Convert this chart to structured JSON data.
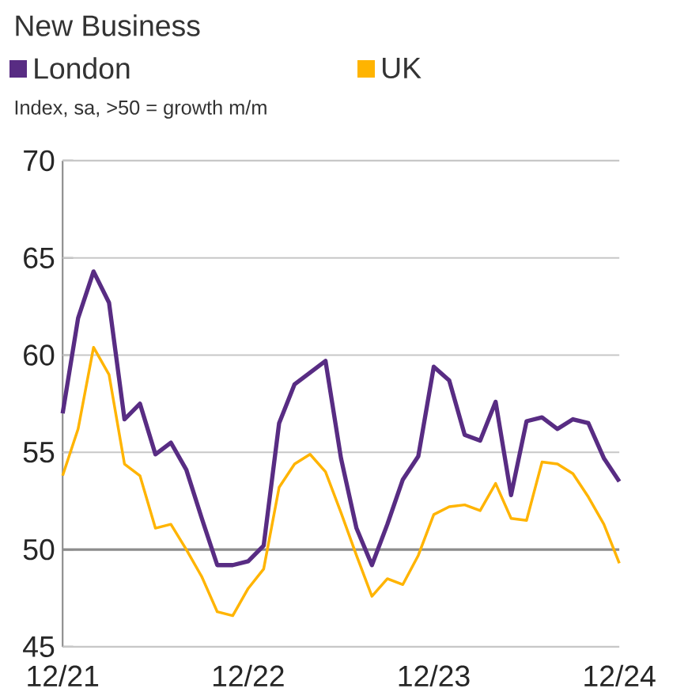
{
  "chart_data": {
    "type": "line",
    "title": "New Business",
    "subtitle": "Index, sa, >50 = growth m/m",
    "x": [
      "2021-12",
      "2022-01",
      "2022-02",
      "2022-03",
      "2022-04",
      "2022-05",
      "2022-06",
      "2022-07",
      "2022-08",
      "2022-09",
      "2022-10",
      "2022-11",
      "2022-12",
      "2023-01",
      "2023-02",
      "2023-03",
      "2023-04",
      "2023-05",
      "2023-06",
      "2023-07",
      "2023-08",
      "2023-09",
      "2023-10",
      "2023-11",
      "2023-12",
      "2024-01",
      "2024-02",
      "2024-03",
      "2024-04",
      "2024-05",
      "2024-06",
      "2024-07",
      "2024-08",
      "2024-09",
      "2024-10",
      "2024-11",
      "2024-12"
    ],
    "series": [
      {
        "name": "London",
        "color": "#582c83",
        "values": [
          57.0,
          61.9,
          64.3,
          62.7,
          56.7,
          57.5,
          54.9,
          55.5,
          54.1,
          51.6,
          49.2,
          49.2,
          49.4,
          50.2,
          56.5,
          58.5,
          59.1,
          59.7,
          54.7,
          51.1,
          49.2,
          51.3,
          53.6,
          54.8,
          59.4,
          58.7,
          55.9,
          55.6,
          57.6,
          52.8,
          56.6,
          56.8,
          56.2,
          56.7,
          56.5,
          54.7,
          53.5
        ]
      },
      {
        "name": "UK",
        "color": "#ffb400",
        "values": [
          53.8,
          56.2,
          60.4,
          59.0,
          54.4,
          53.8,
          51.1,
          51.3,
          50.0,
          48.6,
          46.8,
          46.6,
          48.0,
          49.0,
          53.2,
          54.4,
          54.9,
          54.0,
          51.9,
          49.7,
          47.6,
          48.5,
          48.2,
          49.7,
          51.8,
          52.2,
          52.3,
          52.0,
          53.4,
          51.6,
          51.5,
          54.5,
          54.4,
          53.9,
          52.7,
          51.3,
          49.3
        ]
      }
    ],
    "xlim": [
      "2021-12",
      "2024-12"
    ],
    "xticks": [
      {
        "value": "2021-12",
        "label": "12/21"
      },
      {
        "value": "2022-12",
        "label": "12/22"
      },
      {
        "value": "2023-12",
        "label": "12/23"
      },
      {
        "value": "2024-12",
        "label": "12/24"
      }
    ],
    "ylim": [
      45,
      70
    ],
    "yticks": [
      45,
      50,
      55,
      60,
      65,
      70
    ],
    "ref_lines": [
      {
        "axis": "y",
        "value": 50,
        "color": "#8c8c8c"
      }
    ],
    "grid": "y",
    "legend": "top left",
    "line_style": "solid",
    "marker": "none"
  }
}
